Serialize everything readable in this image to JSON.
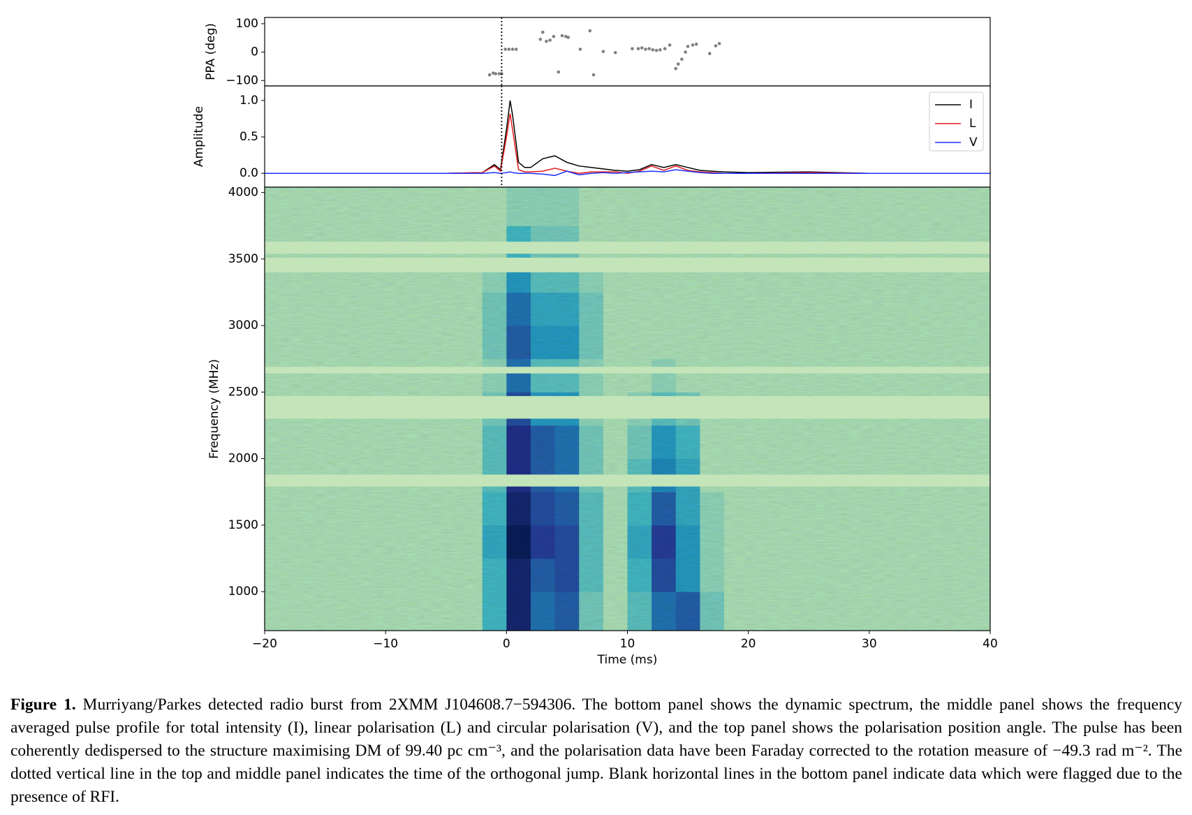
{
  "chart_data": [
    {
      "type": "scatter",
      "ylabel": "PPA (deg)",
      "x": [
        -1.4,
        -1.1,
        -0.9,
        -0.6,
        -0.4,
        -0.1,
        0.2,
        0.5,
        0.8,
        2.8,
        3.0,
        3.3,
        3.6,
        3.9,
        4.3,
        4.6,
        4.9,
        5.1,
        6.1,
        6.9,
        7.2,
        8.0,
        9.0,
        10.4,
        10.9,
        11.2,
        11.5,
        11.8,
        12.1,
        12.4,
        12.7,
        13.1,
        13.5,
        14.0,
        14.2,
        14.5,
        14.8,
        15.0,
        15.4,
        15.7,
        16.8,
        17.3,
        17.6
      ],
      "values": [
        -80,
        -74,
        -76,
        -76,
        -76,
        10,
        10,
        10,
        10,
        45,
        70,
        38,
        42,
        55,
        -70,
        58,
        55,
        52,
        10,
        75,
        -80,
        2,
        -2,
        12,
        12,
        15,
        10,
        12,
        8,
        6,
        8,
        12,
        25,
        -58,
        -42,
        -25,
        0,
        20,
        25,
        28,
        -5,
        22,
        30
      ],
      "color": "#808080",
      "xlim": [
        -20,
        40
      ],
      "ylim": [
        -119,
        122
      ],
      "yticks": [
        {
          "value": -100,
          "label": "−100"
        },
        0,
        100
      ],
      "vline": -0.4
    },
    {
      "type": "line",
      "ylabel": "Amplitude",
      "x": [
        -20,
        -15,
        -10,
        -5,
        -2,
        -1,
        -0.5,
        0,
        0.3,
        0.5,
        1,
        1.5,
        2,
        3,
        4,
        5,
        6,
        7,
        8,
        9,
        10,
        11,
        12,
        13,
        14,
        15,
        16,
        17,
        18,
        20,
        25,
        30,
        35,
        40
      ],
      "series": [
        {
          "name": "I",
          "color": "#000000",
          "values": [
            0,
            0,
            0,
            0,
            0.01,
            0.12,
            0.05,
            0.6,
            1.0,
            0.8,
            0.15,
            0.08,
            0.08,
            0.2,
            0.24,
            0.15,
            0.1,
            0.08,
            0.06,
            0.04,
            0.03,
            0.05,
            0.12,
            0.08,
            0.12,
            0.08,
            0.04,
            0.03,
            0.02,
            0.01,
            0.02,
            0,
            0,
            0
          ]
        },
        {
          "name": "L",
          "color": "#e31a1c",
          "values": [
            0,
            0,
            0,
            0,
            0.01,
            0.1,
            0.03,
            0.5,
            0.82,
            0.6,
            0.05,
            0.02,
            0.02,
            0.03,
            0.07,
            0.03,
            0,
            0.02,
            0.02,
            0.02,
            0,
            0.03,
            0.1,
            0.04,
            0.1,
            0.04,
            0.02,
            0.01,
            0,
            0,
            0.01,
            0,
            0,
            0
          ]
        },
        {
          "name": "V",
          "color": "#1f30ff",
          "values": [
            0,
            0,
            0,
            0,
            0,
            0.01,
            0,
            0.01,
            0.02,
            0.01,
            0,
            0,
            0,
            -0.01,
            -0.03,
            0.03,
            -0.02,
            0,
            0.01,
            0,
            0.01,
            0.02,
            0.03,
            0.02,
            0.05,
            0.03,
            0.01,
            0,
            0,
            0,
            0,
            0,
            0,
            0
          ]
        }
      ],
      "xlim": [
        -20,
        40
      ],
      "ylim": [
        -0.19,
        1.2
      ],
      "yticks": [
        {
          "value": 0,
          "label": "0.0"
        },
        0.5,
        {
          "value": 1,
          "label": "1.0"
        }
      ],
      "legend": "upper right",
      "vline": -0.4
    },
    {
      "type": "heatmap",
      "ylabel": "Frequency (MHz)",
      "xlabel": "Time (ms)",
      "colormap": "YlGnBu",
      "x_edges": [
        -20,
        -18,
        -16,
        -14,
        -12,
        -10,
        -8,
        -6,
        -4,
        -2,
        0,
        2,
        4,
        6,
        8,
        10,
        12,
        14,
        16,
        18,
        20,
        22,
        24,
        26,
        28,
        30,
        32,
        34,
        36,
        38,
        40
      ],
      "y_edges": [
        707,
        1000,
        1250,
        1500,
        1750,
        2000,
        2250,
        2500,
        2750,
        3000,
        3250,
        3500,
        3750,
        4040
      ],
      "values": [
        [
          0.3,
          0.3,
          0.3,
          0.3,
          0.3,
          0.3,
          0.3,
          0.3,
          0.3,
          0.5,
          0.95,
          0.7,
          0.75,
          0.4,
          0.3,
          0.45,
          0.7,
          0.75,
          0.4,
          0.3,
          0.3,
          0.3,
          0.3,
          0.3,
          0.3,
          0.3,
          0.3,
          0.3,
          0.3,
          0.3
        ],
        [
          0.3,
          0.3,
          0.3,
          0.3,
          0.3,
          0.3,
          0.3,
          0.3,
          0.3,
          0.5,
          0.95,
          0.75,
          0.8,
          0.45,
          0.3,
          0.5,
          0.8,
          0.6,
          0.35,
          0.3,
          0.3,
          0.3,
          0.3,
          0.3,
          0.3,
          0.3,
          0.3,
          0.3,
          0.3,
          0.3
        ],
        [
          0.3,
          0.3,
          0.3,
          0.3,
          0.3,
          0.3,
          0.3,
          0.3,
          0.3,
          0.55,
          1.0,
          0.85,
          0.8,
          0.45,
          0.3,
          0.55,
          0.85,
          0.6,
          0.35,
          0.3,
          0.3,
          0.3,
          0.3,
          0.3,
          0.3,
          0.3,
          0.3,
          0.3,
          0.3,
          0.3
        ],
        [
          0.3,
          0.3,
          0.3,
          0.3,
          0.3,
          0.3,
          0.3,
          0.3,
          0.3,
          0.5,
          0.95,
          0.8,
          0.75,
          0.45,
          0.3,
          0.5,
          0.75,
          0.55,
          0.35,
          0.3,
          0.3,
          0.3,
          0.3,
          0.3,
          0.3,
          0.3,
          0.3,
          0.3,
          0.3,
          0.3
        ],
        [
          0.3,
          0.3,
          0.3,
          0.3,
          0.3,
          0.3,
          0.3,
          0.3,
          0.3,
          0.45,
          0.9,
          0.75,
          0.7,
          0.4,
          0.3,
          0.45,
          0.65,
          0.55,
          0.3,
          0.3,
          0.3,
          0.3,
          0.3,
          0.3,
          0.3,
          0.3,
          0.3,
          0.3,
          0.3,
          0.3
        ],
        [
          0.3,
          0.3,
          0.3,
          0.3,
          0.3,
          0.3,
          0.3,
          0.3,
          0.3,
          0.45,
          0.9,
          0.75,
          0.7,
          0.4,
          0.3,
          0.4,
          0.6,
          0.5,
          0.3,
          0.3,
          0.3,
          0.3,
          0.3,
          0.3,
          0.3,
          0.3,
          0.3,
          0.3,
          0.3,
          0.3
        ],
        [
          0.3,
          0.3,
          0.3,
          0.3,
          0.3,
          0.3,
          0.3,
          0.3,
          0.3,
          0.4,
          0.8,
          0.6,
          0.6,
          0.35,
          0.3,
          0.35,
          0.45,
          0.4,
          0.3,
          0.3,
          0.3,
          0.3,
          0.3,
          0.3,
          0.3,
          0.3,
          0.3,
          0.3,
          0.3,
          0.3
        ],
        [
          0.3,
          0.3,
          0.3,
          0.3,
          0.3,
          0.3,
          0.3,
          0.3,
          0.3,
          0.35,
          0.7,
          0.45,
          0.45,
          0.35,
          0.3,
          0.3,
          0.35,
          0.3,
          0.3,
          0.3,
          0.3,
          0.3,
          0.3,
          0.3,
          0.3,
          0.3,
          0.3,
          0.3,
          0.3,
          0.3
        ],
        [
          0.3,
          0.3,
          0.3,
          0.3,
          0.3,
          0.3,
          0.3,
          0.3,
          0.3,
          0.4,
          0.75,
          0.6,
          0.6,
          0.4,
          0.3,
          0.3,
          0.3,
          0.3,
          0.3,
          0.3,
          0.3,
          0.3,
          0.3,
          0.3,
          0.3,
          0.3,
          0.3,
          0.3,
          0.3,
          0.3
        ],
        [
          0.3,
          0.3,
          0.3,
          0.3,
          0.3,
          0.3,
          0.3,
          0.3,
          0.3,
          0.4,
          0.7,
          0.55,
          0.55,
          0.4,
          0.3,
          0.3,
          0.3,
          0.3,
          0.3,
          0.3,
          0.3,
          0.3,
          0.3,
          0.3,
          0.3,
          0.3,
          0.3,
          0.3,
          0.3,
          0.3
        ],
        [
          0.3,
          0.3,
          0.3,
          0.3,
          0.3,
          0.3,
          0.3,
          0.3,
          0.3,
          0.35,
          0.6,
          0.45,
          0.45,
          0.35,
          0.3,
          0.3,
          0.3,
          0.3,
          0.3,
          0.3,
          0.3,
          0.3,
          0.3,
          0.3,
          0.3,
          0.3,
          0.3,
          0.3,
          0.3,
          0.3
        ],
        [
          0.3,
          0.3,
          0.3,
          0.3,
          0.3,
          0.3,
          0.3,
          0.3,
          0.3,
          0.3,
          0.5,
          0.4,
          0.4,
          0.3,
          0.3,
          0.3,
          0.3,
          0.3,
          0.3,
          0.3,
          0.3,
          0.3,
          0.3,
          0.3,
          0.3,
          0.3,
          0.3,
          0.3,
          0.3,
          0.3
        ],
        [
          0.3,
          0.3,
          0.3,
          0.3,
          0.3,
          0.3,
          0.3,
          0.3,
          0.3,
          0.3,
          0.35,
          0.35,
          0.35,
          0.3,
          0.3,
          0.3,
          0.3,
          0.3,
          0.3,
          0.3,
          0.3,
          0.3,
          0.3,
          0.3,
          0.3,
          0.3,
          0.3,
          0.3,
          0.3,
          0.3
        ]
      ],
      "flagged_bands": [
        [
          3540,
          3630
        ],
        [
          3400,
          3510
        ],
        [
          2640,
          2690
        ],
        [
          2300,
          2470
        ],
        [
          1790,
          1880
        ]
      ],
      "xlim": [
        -20,
        40
      ],
      "ylim": [
        707,
        4040
      ],
      "xticks": [
        {
          "value": -20,
          "label": "−20"
        },
        {
          "value": -10,
          "label": "−10"
        },
        0,
        10,
        20,
        30,
        40
      ],
      "yticks": [
        1000,
        1500,
        2000,
        2500,
        3000,
        3500,
        4000
      ]
    }
  ],
  "caption": {
    "label": "Figure 1.",
    "text": "Murriyang/Parkes detected radio burst from 2XMM J104608.7−594306. The bottom panel shows the dynamic spectrum, the middle panel shows the frequency averaged pulse profile for total intensity (I), linear polarisation (L) and circular polarisation (V), and the top panel shows the polarisation position angle. The pulse has been coherently dedispersed to the structure maximising DM of 99.40 pc cm⁻³, and the polarisation data have been Faraday corrected to the rotation measure of −49.3 rad m⁻². The dotted vertical line in the top and middle panel indicates the time of the orthogonal jump. Blank horizontal lines in the bottom panel indicate data which were flagged due to the presence of RFI."
  }
}
